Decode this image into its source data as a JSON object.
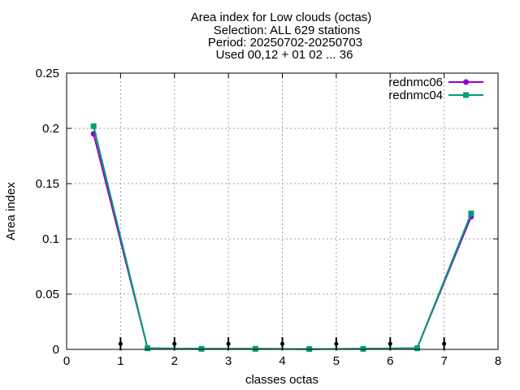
{
  "chart_data": {
    "type": "line",
    "title": [
      "Area index  for Low clouds (octas)",
      "Selection: ALL    629 stations",
      "Period: 20250702-20250703",
      "Used 00,12 + 01 02 ... 36"
    ],
    "xlabel": "classes octas",
    "ylabel": "Area index",
    "xlim": [
      0,
      8
    ],
    "ylim": [
      0,
      0.25
    ],
    "xticks": [
      "0",
      "1",
      "2",
      "3",
      "4",
      "5",
      "6",
      "7",
      "8"
    ],
    "yticks": [
      "0",
      "0.05",
      "0.1",
      "0.15",
      "0.2",
      "0.25"
    ],
    "grid": true,
    "legend_position": "top-right",
    "series": [
      {
        "name": "rednmc06",
        "color": "#9400d3",
        "x": [
          0.5,
          1.5,
          2.5,
          3.5,
          4.5,
          5.5,
          6.5,
          7.5
        ],
        "y": [
          0.195,
          0.001,
          0.0005,
          0.0005,
          0.0003,
          0.0005,
          0.001,
          0.12
        ]
      },
      {
        "name": "rednmc04",
        "color": "#009e73",
        "x": [
          0.5,
          1.5,
          2.5,
          3.5,
          4.5,
          5.5,
          6.5,
          7.5
        ],
        "y": [
          0.202,
          0.001,
          0.0005,
          0.0005,
          0.0003,
          0.0005,
          0.001,
          0.123
        ]
      }
    ],
    "markers": {
      "color": "#000000",
      "x": [
        1,
        2,
        3,
        4,
        5,
        6,
        7
      ],
      "y": 0.005,
      "half_height": 0.006
    }
  }
}
